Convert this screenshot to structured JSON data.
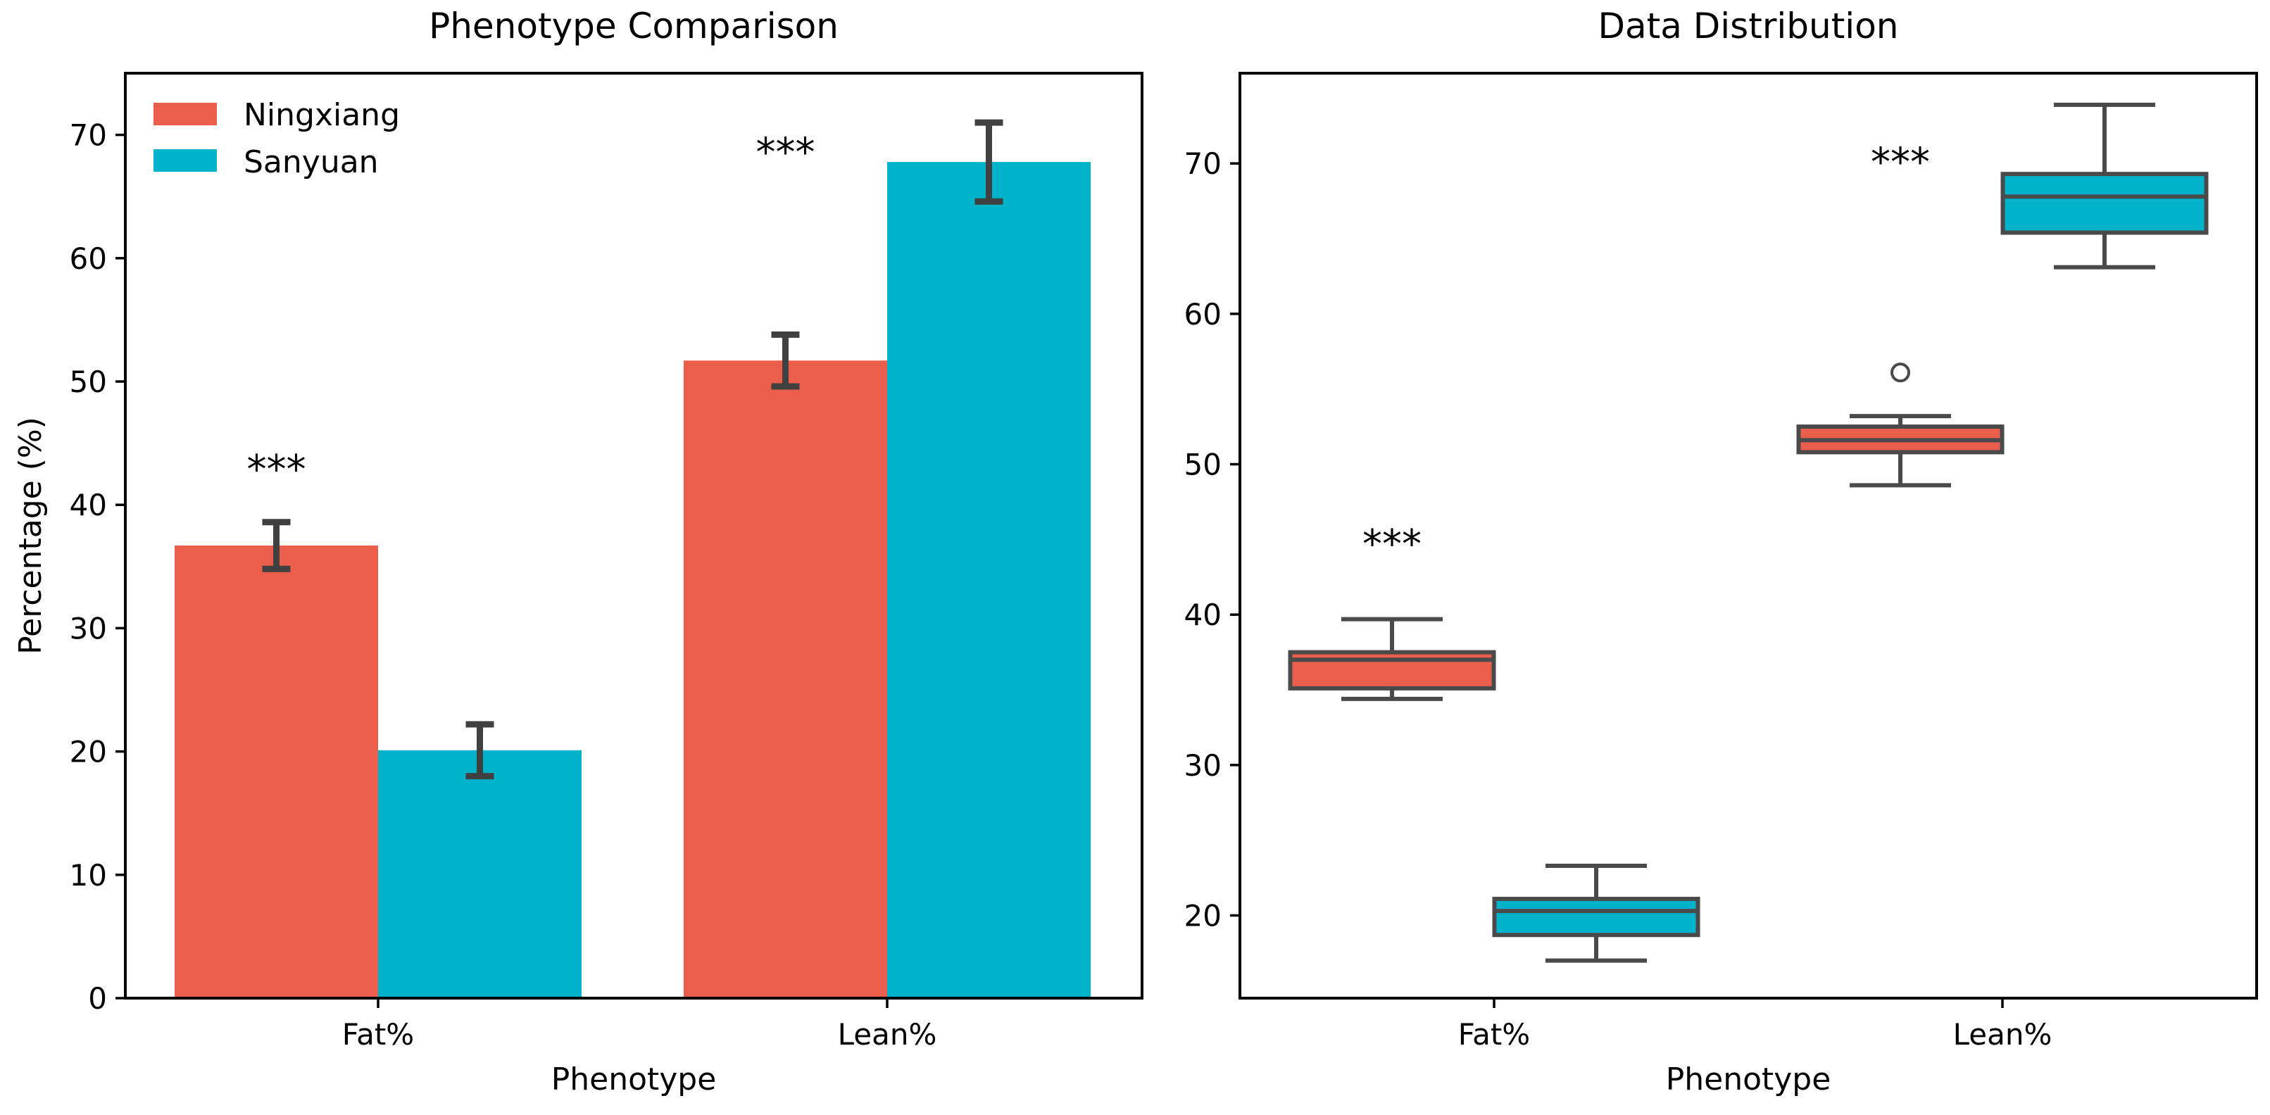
{
  "figure": {
    "colors": {
      "Ningxiang": "#EC5E4C",
      "Sanyuan": "#00B2CA",
      "whisker": "#4a4a4a",
      "error_bar": "#404040"
    }
  },
  "chart_data": [
    {
      "type": "bar",
      "title": "Phenotype Comparison",
      "xlabel": "Phenotype",
      "ylabel": "Percentage (%)",
      "categories": [
        "Fat%",
        "Lean%"
      ],
      "ylim": [
        0,
        75
      ],
      "yticks": [
        0,
        10,
        20,
        30,
        40,
        50,
        60,
        70
      ],
      "legend_position": "top-left",
      "series": [
        {
          "name": "Ningxiang",
          "values": [
            36.7,
            51.7
          ],
          "errors": [
            1.9,
            2.1
          ]
        },
        {
          "name": "Sanyuan",
          "values": [
            20.1,
            67.8
          ],
          "errors": [
            2.1,
            3.2
          ]
        }
      ],
      "annotations": [
        {
          "category": "Fat%",
          "text": "***",
          "y": 43.5
        },
        {
          "category": "Lean%",
          "text": "***",
          "y": 69.2
        }
      ]
    },
    {
      "type": "box",
      "title": "Data Distribution",
      "xlabel": "Phenotype",
      "ylabel": "",
      "categories": [
        "Fat%",
        "Lean%"
      ],
      "ylim": [
        14.5,
        76
      ],
      "yticks": [
        20,
        30,
        40,
        50,
        60,
        70
      ],
      "series": [
        {
          "name": "Ningxiang",
          "boxes": [
            {
              "min": 34.4,
              "q1": 35.1,
              "median": 37.0,
              "q3": 37.5,
              "max": 39.7,
              "outliers": []
            },
            {
              "min": 48.6,
              "q1": 50.8,
              "median": 51.6,
              "q3": 52.5,
              "max": 53.2,
              "outliers": [
                56.1
              ]
            }
          ]
        },
        {
          "name": "Sanyuan",
          "boxes": [
            {
              "min": 17.0,
              "q1": 18.7,
              "median": 20.3,
              "q3": 21.1,
              "max": 23.3,
              "outliers": []
            },
            {
              "min": 63.1,
              "q1": 65.4,
              "median": 67.8,
              "q3": 69.3,
              "max": 73.9,
              "outliers": []
            }
          ]
        }
      ],
      "annotations": [
        {
          "category": "Fat%",
          "text": "***",
          "y": 45.2
        },
        {
          "category": "Lean%",
          "text": "***",
          "y": 70.6
        }
      ]
    }
  ]
}
